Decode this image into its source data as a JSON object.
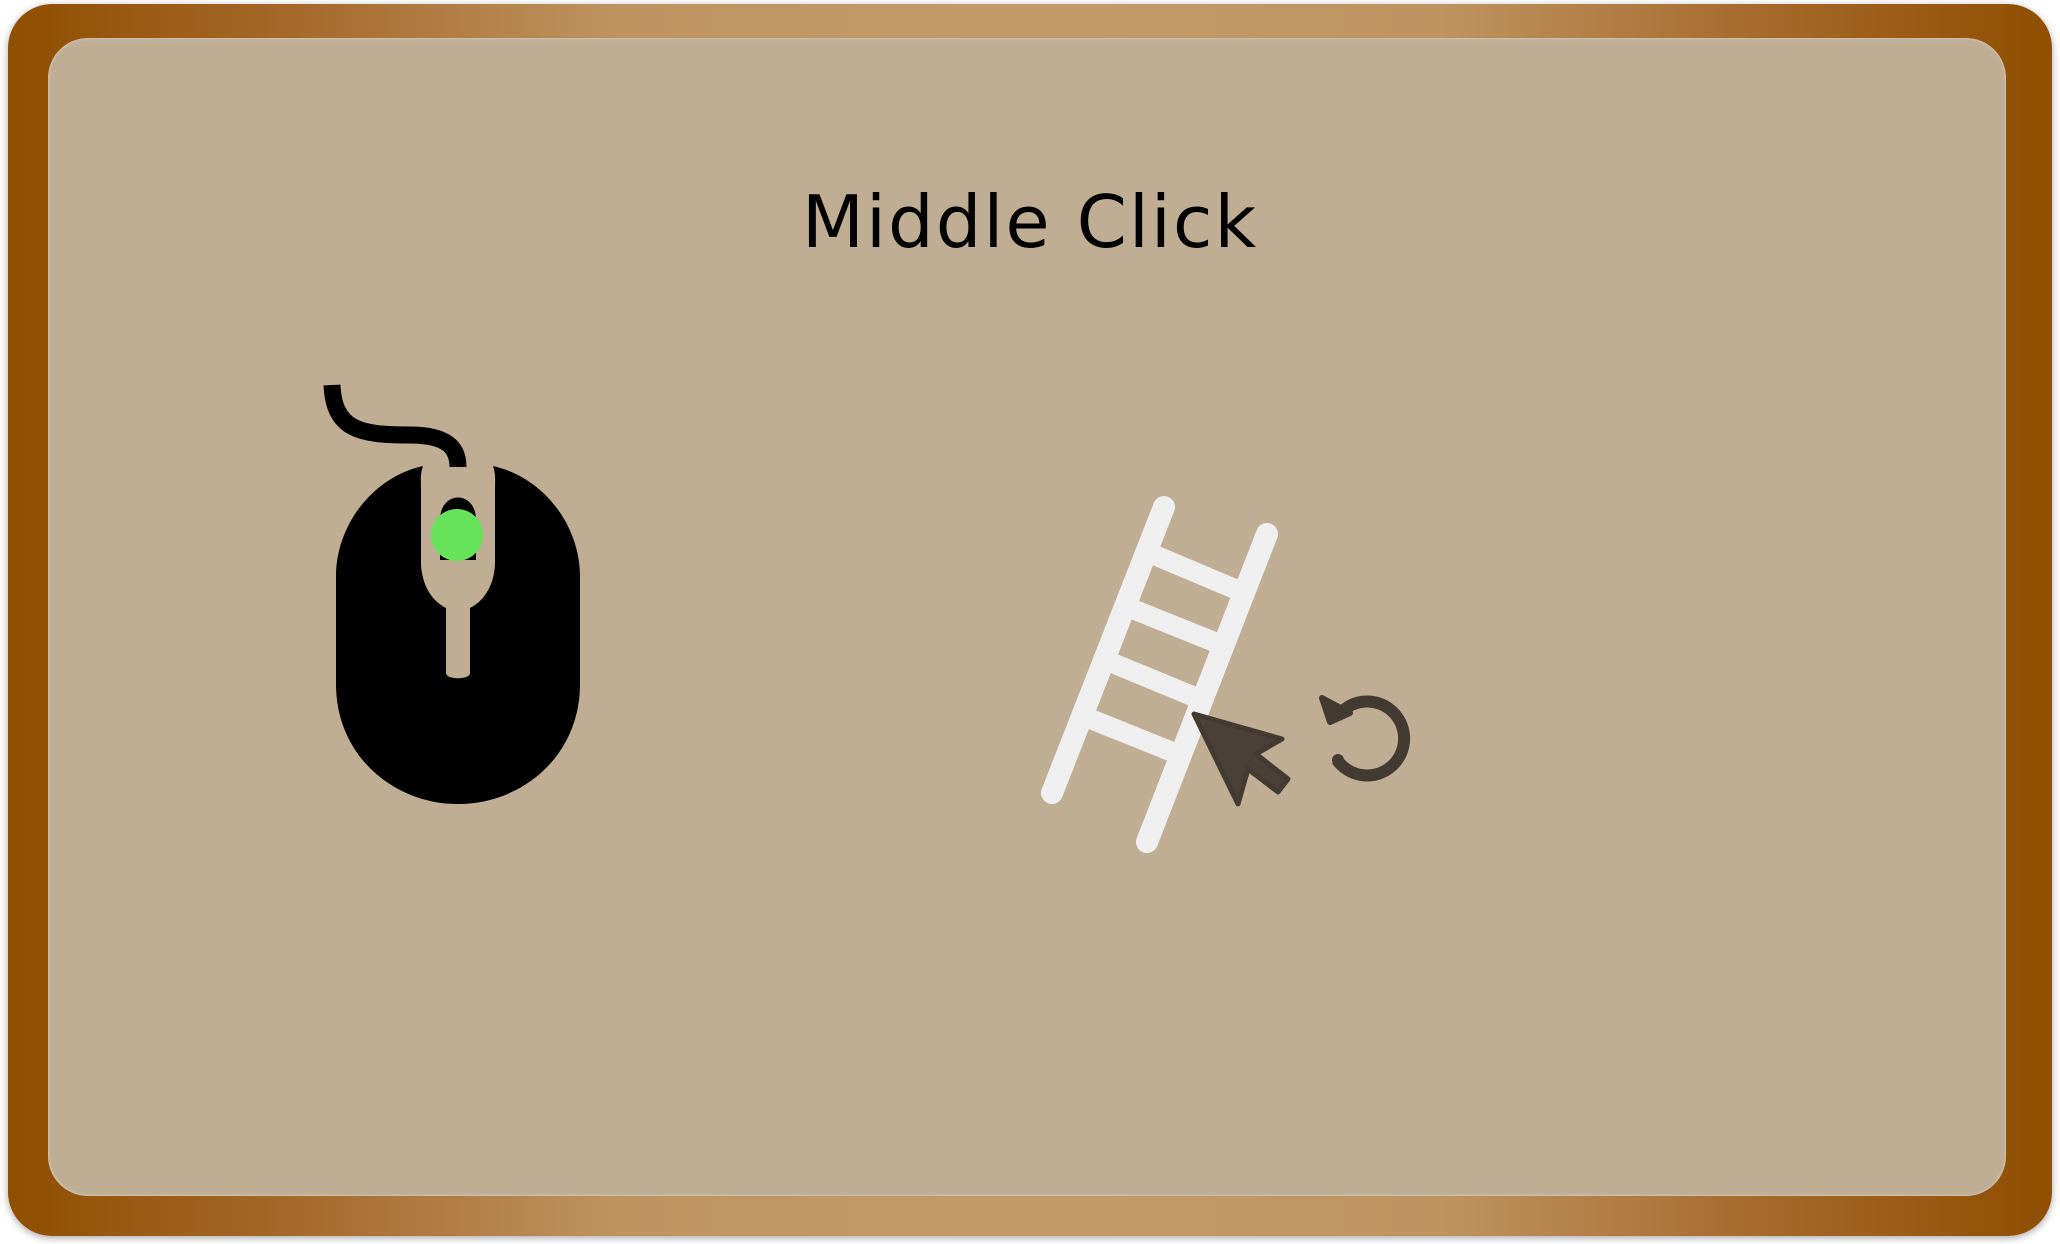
{
  "title": "Middle Click",
  "icons": {
    "mouse": "mouse-icon",
    "middle_button_indicator": "middle-button-indicator",
    "ladder": "ladder-icon",
    "cursor": "cursor-arrow-icon",
    "rotate": "rotate-icon"
  },
  "colors": {
    "frame_edge": "#8f4e00",
    "frame_center": "#c29a6a",
    "panel": "#bfae94",
    "indicator": "#66e35a",
    "ladder": "#f0efef",
    "cursor": "#433a32"
  }
}
